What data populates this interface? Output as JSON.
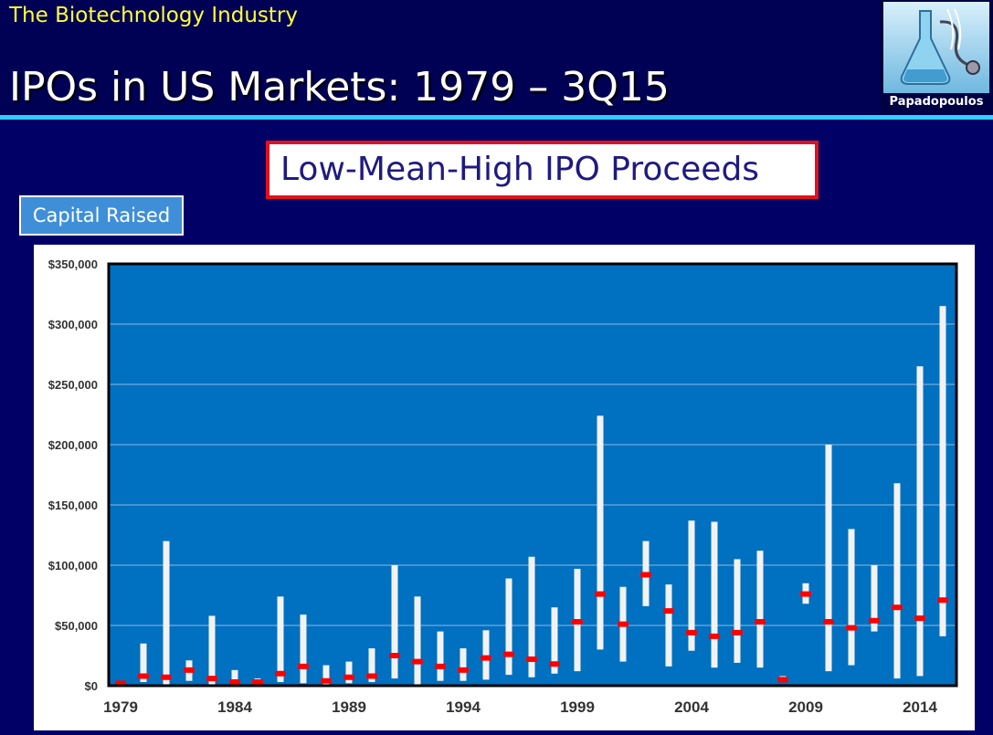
{
  "header": {
    "kicker": "The Biotechnology Industry",
    "title": "IPOs in US Markets: 1979 – 3Q15",
    "logo_name": "Papadopoulos"
  },
  "subtitle_box": "Low-Mean-High IPO Proceeds",
  "badge": "Capital Raised",
  "colors": {
    "background": "#000066",
    "plot_area": "#0070c0",
    "bar": "#f2f2f2",
    "mean_marker": "#ff0000",
    "accent_rule": "#33ccff",
    "kicker_text": "#ffff33"
  },
  "chart_data": {
    "type": "bar",
    "variant": "low-mean-high range bars",
    "title": "",
    "xlabel": "",
    "ylabel": "",
    "ylim": [
      0,
      350000
    ],
    "y_ticks": [
      {
        "value": 0,
        "label": "$0"
      },
      {
        "value": 50000,
        "label": "$50,000"
      },
      {
        "value": 100000,
        "label": "$100,000"
      },
      {
        "value": 150000,
        "label": "$150,000"
      },
      {
        "value": 200000,
        "label": "$200,000"
      },
      {
        "value": 250000,
        "label": "$250,000"
      },
      {
        "value": 300000,
        "label": "$300,000"
      },
      {
        "value": 350000,
        "label": "$350,000"
      }
    ],
    "x_ticks": [
      "1979",
      "1984",
      "1989",
      "1994",
      "1999",
      "2004",
      "2009",
      "2014"
    ],
    "grid": true,
    "legend": "none",
    "points": [
      {
        "year": 1979,
        "low": 1000,
        "high": 4000,
        "mean": 2000
      },
      {
        "year": 1980,
        "low": 3000,
        "high": 35000,
        "mean": 8000
      },
      {
        "year": 1981,
        "low": 1000,
        "high": 120000,
        "mean": 7000
      },
      {
        "year": 1982,
        "low": 4000,
        "high": 21000,
        "mean": 13000
      },
      {
        "year": 1983,
        "low": 1000,
        "high": 58000,
        "mean": 6000
      },
      {
        "year": 1984,
        "low": 1000,
        "high": 13000,
        "mean": 3000
      },
      {
        "year": 1985,
        "low": 1000,
        "high": 6000,
        "mean": 3000
      },
      {
        "year": 1986,
        "low": 3000,
        "high": 74000,
        "mean": 10000
      },
      {
        "year": 1987,
        "low": 2000,
        "high": 59000,
        "mean": 16000
      },
      {
        "year": 1988,
        "low": 1000,
        "high": 17000,
        "mean": 4000
      },
      {
        "year": 1989,
        "low": 2000,
        "high": 20000,
        "mean": 7000
      },
      {
        "year": 1990,
        "low": 3000,
        "high": 31000,
        "mean": 8000
      },
      {
        "year": 1991,
        "low": 6000,
        "high": 100000,
        "mean": 25000
      },
      {
        "year": 1992,
        "low": 1000,
        "high": 74000,
        "mean": 20000
      },
      {
        "year": 1993,
        "low": 4000,
        "high": 45000,
        "mean": 16000
      },
      {
        "year": 1994,
        "low": 4000,
        "high": 31000,
        "mean": 13000
      },
      {
        "year": 1995,
        "low": 5000,
        "high": 46000,
        "mean": 23000
      },
      {
        "year": 1996,
        "low": 9000,
        "high": 89000,
        "mean": 26000
      },
      {
        "year": 1997,
        "low": 7000,
        "high": 107000,
        "mean": 22000
      },
      {
        "year": 1998,
        "low": 10000,
        "high": 65000,
        "mean": 18000
      },
      {
        "year": 1999,
        "low": 12000,
        "high": 97000,
        "mean": 53000
      },
      {
        "year": 2000,
        "low": 30000,
        "high": 224000,
        "mean": 76000
      },
      {
        "year": 2001,
        "low": 20000,
        "high": 82000,
        "mean": 51000
      },
      {
        "year": 2002,
        "low": 66000,
        "high": 120000,
        "mean": 92000
      },
      {
        "year": 2003,
        "low": 16000,
        "high": 84000,
        "mean": 62000
      },
      {
        "year": 2004,
        "low": 29000,
        "high": 137000,
        "mean": 44000
      },
      {
        "year": 2005,
        "low": 15000,
        "high": 136000,
        "mean": 41000
      },
      {
        "year": 2006,
        "low": 19000,
        "high": 105000,
        "mean": 44000
      },
      {
        "year": 2007,
        "low": 15000,
        "high": 112000,
        "mean": 53000
      },
      {
        "year": 2008,
        "low": 4000,
        "high": 8000,
        "mean": 5000
      },
      {
        "year": 2009,
        "low": 68000,
        "high": 85000,
        "mean": 76000
      },
      {
        "year": 2010,
        "low": 12000,
        "high": 200000,
        "mean": 53000
      },
      {
        "year": 2011,
        "low": 17000,
        "high": 130000,
        "mean": 48000
      },
      {
        "year": 2012,
        "low": 45000,
        "high": 100000,
        "mean": 54000
      },
      {
        "year": 2013,
        "low": 6000,
        "high": 168000,
        "mean": 65000
      },
      {
        "year": 2014,
        "low": 8000,
        "high": 265000,
        "mean": 56000
      },
      {
        "year": 2015,
        "low": 41000,
        "high": 315000,
        "mean": 71000
      }
    ]
  }
}
